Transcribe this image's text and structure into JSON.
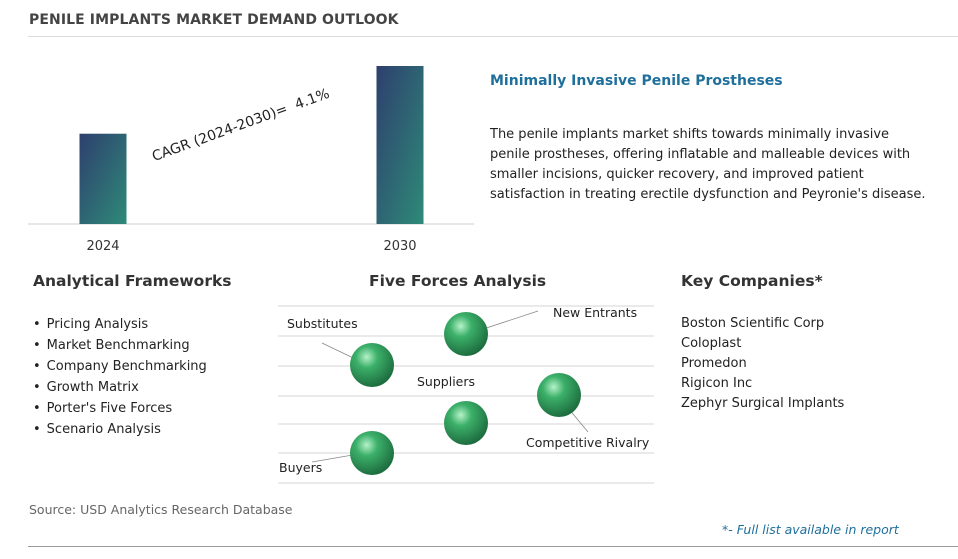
{
  "page_title": "PENILE IMPLANTS MARKET DEMAND OUTLOOK",
  "chart_data": {
    "type": "bar",
    "categories": [
      "2024",
      "2030"
    ],
    "values": [
      1.0,
      1.75
    ],
    "annotation": "CAGR (2024-2030)=  4.1%",
    "colors": {
      "bar_top": "#2e3f6e",
      "bar_bottom": "#2e8a78"
    }
  },
  "highlight": {
    "title": "Minimally Invasive Penile Prostheses",
    "text": "The penile implants market shifts towards minimally invasive penile prostheses, offering inflatable and malleable devices with smaller incisions, quicker recovery, and improved patient satisfaction in treating erectile dysfunction and Peyronie's disease."
  },
  "frameworks": {
    "heading": "Analytical Frameworks",
    "items": [
      "Pricing Analysis",
      "Market Benchmarking",
      "Company Benchmarking",
      "Growth Matrix",
      "Porter's Five Forces",
      "Scenario Analysis"
    ]
  },
  "five_forces": {
    "heading": "Five Forces Analysis",
    "labels": [
      "Substitutes",
      "New Entrants",
      "Suppliers",
      "Competitive Rivalry",
      "Buyers"
    ],
    "colors": {
      "sphere": "#2e9e5e",
      "lines": "#d0d0d0"
    }
  },
  "companies": {
    "heading": "Key Companies*",
    "items": [
      "Boston Scientific Corp",
      "Coloplast",
      "Promedon",
      "Rigicon Inc",
      "Zephyr Surgical Implants"
    ]
  },
  "source": "Source: USD Analytics Research Database",
  "footnote": "*- Full list available in report"
}
